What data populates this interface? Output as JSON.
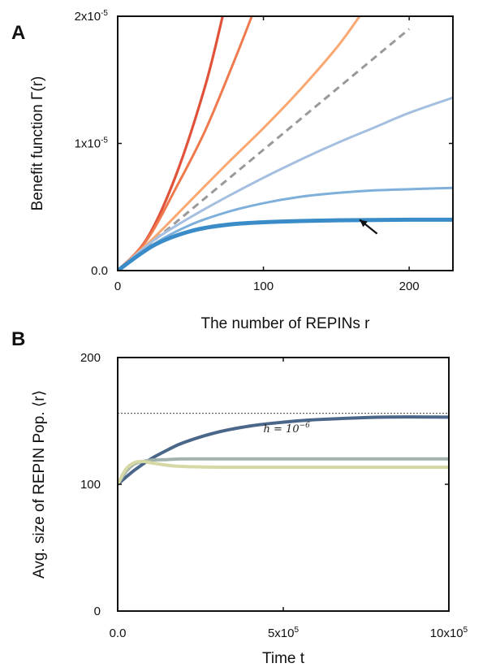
{
  "chart_data": [
    {
      "panel": "A",
      "type": "line",
      "xlabel": "The number of REPINs r",
      "ylabel": "Benefit function Γ(r)",
      "xlim": [
        0,
        230
      ],
      "ylim": [
        0,
        2e-05
      ],
      "x_ticks": [
        0,
        100,
        200
      ],
      "x_tick_labels": [
        "0",
        "100",
        "200"
      ],
      "y_ticks": [
        0,
        1e-05,
        2e-05
      ],
      "y_tick_labels": [
        "0.0",
        "1x10-5",
        "2x10-5"
      ],
      "grid": false,
      "series": [
        {
          "color": "#e0523a",
          "width": 3.2,
          "dash": false,
          "x": [
            0,
            20,
            40,
            60,
            72
          ],
          "y": [
            0,
            2.5e-06,
            7.5e-06,
            1.45e-05,
            2e-05
          ]
        },
        {
          "color": "#f07a4e",
          "width": 3.0,
          "dash": false,
          "x": [
            0,
            20,
            40,
            60,
            80,
            92
          ],
          "y": [
            0,
            2.4e-06,
            6.5e-06,
            1.1e-05,
            1.65e-05,
            2e-05
          ]
        },
        {
          "color": "#f9a872",
          "width": 3.0,
          "dash": false,
          "x": [
            0,
            25,
            50,
            75,
            100,
            125,
            150,
            166
          ],
          "y": [
            0,
            2.6e-06,
            5.5e-06,
            8.4e-06,
            1.12e-05,
            1.42e-05,
            1.75e-05,
            2e-05
          ]
        },
        {
          "color": "#999999",
          "width": 3.0,
          "dash": true,
          "x": [
            0,
            200
          ],
          "y": [
            0,
            1.9e-05
          ]
        },
        {
          "color": "#a5bfe0",
          "width": 3.0,
          "dash": false,
          "x": [
            0,
            25,
            50,
            75,
            100,
            125,
            150,
            175,
            200,
            230
          ],
          "y": [
            0,
            2.4e-06,
            4.2e-06,
            5.8e-06,
            7.3e-06,
            8.7e-06,
            1e-05,
            1.12e-05,
            1.24e-05,
            1.36e-05
          ]
        },
        {
          "color": "#7fb0db",
          "width": 3.0,
          "dash": false,
          "x": [
            0,
            25,
            50,
            75,
            100,
            125,
            150,
            175,
            200,
            230
          ],
          "y": [
            0,
            2.1e-06,
            3.6e-06,
            4.6e-06,
            5.3e-06,
            5.8e-06,
            6.1e-06,
            6.3e-06,
            6.4e-06,
            6.5e-06
          ]
        },
        {
          "color": "#3a8cc8",
          "width": 5.0,
          "dash": false,
          "x": [
            0,
            25,
            50,
            75,
            100,
            125,
            150,
            175,
            200,
            230
          ],
          "y": [
            0,
            2e-06,
            3.1e-06,
            3.6e-06,
            3.8e-06,
            3.9e-06,
            3.95e-06,
            3.98e-06,
            4e-06,
            4e-06
          ]
        }
      ],
      "arrow": {
        "from": [
          178,
          2.9e-06
        ],
        "to": [
          166,
          4e-06
        ]
      }
    },
    {
      "panel": "B",
      "type": "line",
      "xlabel": "Time t",
      "ylabel": "Avg. size of REPIN Pop. ⟨r⟩",
      "xlim": [
        0,
        1000000
      ],
      "ylim": [
        0,
        200
      ],
      "x_ticks": [
        0,
        500000,
        1000000
      ],
      "x_tick_labels": [
        "0.0",
        "5x105",
        "10x105"
      ],
      "y_ticks": [
        0,
        100,
        200
      ],
      "y_tick_labels": [
        "0",
        "100",
        "200"
      ],
      "grid": false,
      "reference_line": {
        "y": 156,
        "color": "#444444"
      },
      "annotation": {
        "text": "h = 10−6",
        "x": 440000,
        "y": 141
      },
      "series": [
        {
          "color": "#4a6688",
          "width": 4.0,
          "x": [
            0,
            50000,
            100000,
            150000,
            200000,
            300000,
            400000,
            500000,
            600000,
            800000,
            1000000
          ],
          "y": [
            100,
            111,
            120,
            127,
            133,
            141,
            146,
            149,
            151,
            153,
            153
          ]
        },
        {
          "color": "#a3b2ac",
          "width": 4.0,
          "x": [
            0,
            25000,
            50000,
            75000,
            100000,
            150000,
            200000,
            300000,
            500000,
            1000000
          ],
          "y": [
            100,
            110,
            116,
            118,
            119,
            119.5,
            120,
            120,
            120,
            120
          ]
        },
        {
          "color": "#d6d8a5",
          "width": 4.0,
          "x": [
            0,
            25000,
            50000,
            75000,
            100000,
            150000,
            200000,
            300000,
            500000,
            1000000
          ],
          "y": [
            100,
            112,
            117,
            118,
            117,
            115,
            114,
            113.5,
            113.5,
            113.5
          ]
        }
      ]
    }
  ]
}
